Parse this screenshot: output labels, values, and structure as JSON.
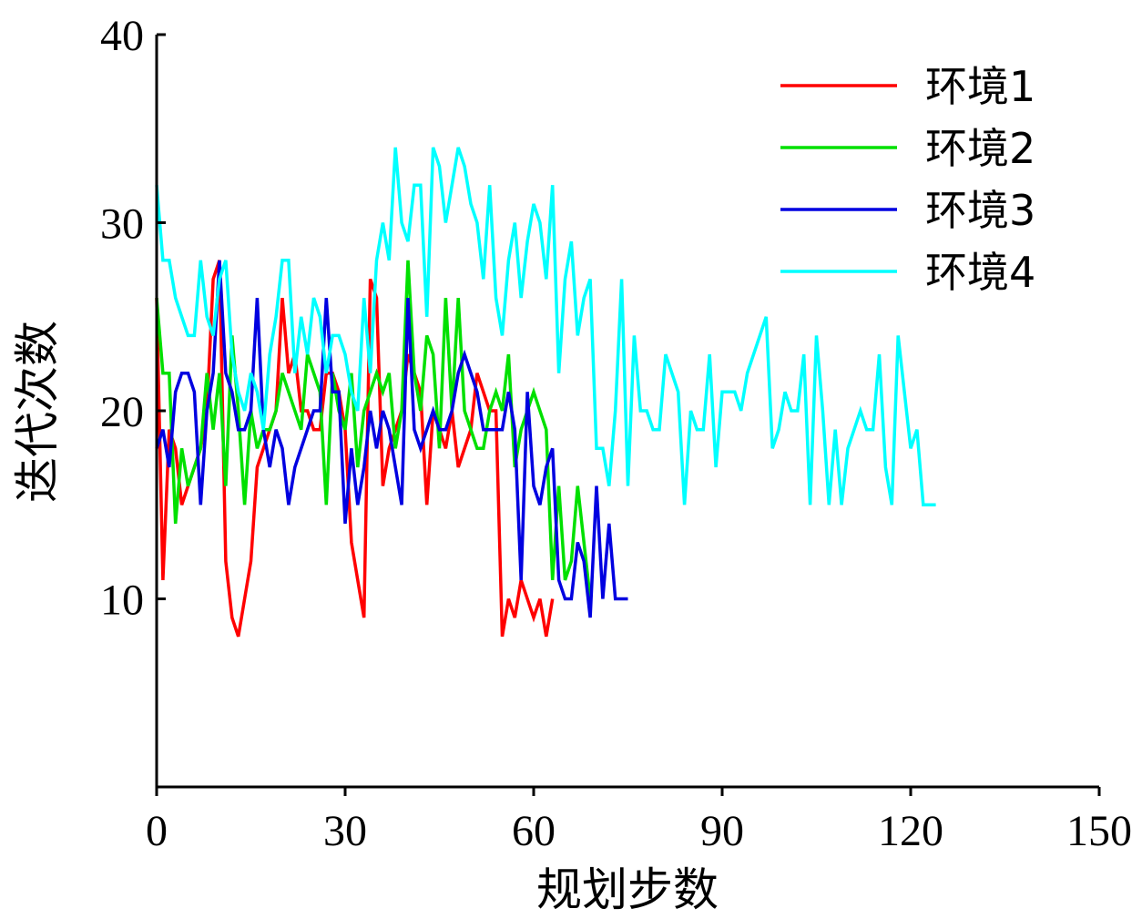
{
  "chart_data": {
    "type": "line",
    "xlabel": "规划步数",
    "ylabel": "迭代次数",
    "xlim": [
      0,
      150
    ],
    "ylim": [
      0,
      40
    ],
    "xticks": [
      "0",
      "30",
      "60",
      "90",
      "120",
      "150"
    ],
    "yticks": [
      "10",
      "20",
      "30",
      "40"
    ],
    "legend_position": "top-right",
    "grid": false,
    "series": [
      {
        "name": "环境1",
        "color": "#ff0000",
        "x": [
          0,
          1,
          2,
          3,
          4,
          5,
          6,
          7,
          8,
          9,
          10,
          11,
          12,
          13,
          14,
          15,
          16,
          17,
          18,
          19,
          20,
          21,
          22,
          23,
          24,
          25,
          26,
          27,
          28,
          29,
          30,
          31,
          32,
          33,
          34,
          35,
          36,
          37,
          38,
          39,
          40,
          41,
          42,
          43,
          44,
          45,
          46,
          47,
          48,
          49,
          50,
          51,
          52,
          53,
          54,
          55,
          56,
          57,
          58,
          59,
          60,
          61,
          62,
          63
        ],
        "values": [
          26,
          11,
          19,
          18,
          15,
          16,
          17,
          18,
          20,
          27,
          28,
          12,
          9,
          8,
          10,
          12,
          17,
          18,
          19,
          20,
          26,
          22,
          23,
          20,
          20,
          19,
          19,
          22,
          22,
          21,
          19,
          13,
          11,
          9,
          27,
          26,
          16,
          18,
          19,
          20,
          23,
          22,
          21,
          15,
          20,
          19,
          18,
          20,
          17,
          18,
          19,
          22,
          21,
          20,
          20,
          8,
          10,
          9,
          11,
          10,
          9,
          10,
          8,
          10
        ]
      },
      {
        "name": "环境2",
        "color": "#00e000",
        "x": [
          0,
          1,
          2,
          3,
          4,
          5,
          6,
          7,
          8,
          9,
          10,
          11,
          12,
          13,
          14,
          15,
          16,
          17,
          18,
          19,
          20,
          21,
          22,
          23,
          24,
          25,
          26,
          27,
          28,
          29,
          30,
          31,
          32,
          33,
          34,
          35,
          36,
          37,
          38,
          39,
          40,
          41,
          42,
          43,
          44,
          45,
          46,
          47,
          48,
          49,
          50,
          51,
          52,
          53,
          54,
          55,
          56,
          57,
          58,
          59,
          60,
          61,
          62,
          63,
          64,
          65,
          66,
          67,
          68,
          69
        ],
        "values": [
          26,
          22,
          22,
          14,
          18,
          16,
          17,
          18,
          22,
          19,
          22,
          16,
          24,
          20,
          15,
          20,
          18,
          19,
          19,
          20,
          22,
          21,
          20,
          19,
          23,
          22,
          21,
          15,
          22,
          20,
          19,
          22,
          17,
          20,
          21,
          22,
          21,
          22,
          18,
          20,
          28,
          22,
          20,
          24,
          23,
          18,
          26,
          20,
          26,
          20,
          19,
          18,
          18,
          20,
          21,
          20,
          23,
          17,
          19,
          20,
          21,
          20,
          19,
          11,
          16,
          11,
          12,
          16,
          13,
          10
        ]
      },
      {
        "name": "环境3",
        "color": "#0000e0",
        "x": [
          0,
          1,
          2,
          3,
          4,
          5,
          6,
          7,
          8,
          9,
          10,
          11,
          12,
          13,
          14,
          15,
          16,
          17,
          18,
          19,
          20,
          21,
          22,
          23,
          24,
          25,
          26,
          27,
          28,
          29,
          30,
          31,
          32,
          33,
          34,
          35,
          36,
          37,
          38,
          39,
          40,
          41,
          42,
          43,
          44,
          45,
          46,
          47,
          48,
          49,
          50,
          51,
          52,
          53,
          54,
          55,
          56,
          57,
          58,
          59,
          60,
          61,
          62,
          63,
          64,
          65,
          66,
          67,
          68,
          69,
          70,
          71,
          72,
          73,
          74,
          75
        ],
        "values": [
          18,
          19,
          17,
          21,
          22,
          22,
          21,
          15,
          20,
          22,
          28,
          22,
          21,
          19,
          19,
          20,
          26,
          19,
          17,
          19,
          18,
          15,
          17,
          18,
          19,
          20,
          20,
          26,
          21,
          21,
          14,
          18,
          15,
          17,
          20,
          18,
          20,
          19,
          17,
          15,
          26,
          19,
          18,
          19,
          20,
          19,
          19,
          20,
          22,
          23,
          22,
          21,
          19,
          19,
          19,
          19,
          21,
          19,
          11,
          21,
          16,
          15,
          17,
          18,
          11,
          10,
          10,
          13,
          12,
          9,
          16,
          10,
          14,
          10,
          10,
          10
        ]
      },
      {
        "name": "环境4",
        "color": "#00ffff",
        "x": [
          0,
          1,
          2,
          3,
          4,
          5,
          6,
          7,
          8,
          9,
          10,
          11,
          12,
          13,
          14,
          15,
          16,
          17,
          18,
          19,
          20,
          21,
          22,
          23,
          24,
          25,
          26,
          27,
          28,
          29,
          30,
          31,
          32,
          33,
          34,
          35,
          36,
          37,
          38,
          39,
          40,
          41,
          42,
          43,
          44,
          45,
          46,
          47,
          48,
          49,
          50,
          51,
          52,
          53,
          54,
          55,
          56,
          57,
          58,
          59,
          60,
          61,
          62,
          63,
          64,
          65,
          66,
          67,
          68,
          69,
          70,
          71,
          72,
          73,
          74,
          75,
          76,
          77,
          78,
          79,
          80,
          81,
          82,
          83,
          84,
          85,
          86,
          87,
          88,
          89,
          90,
          91,
          92,
          93,
          94,
          95,
          96,
          97,
          98,
          99,
          100,
          101,
          102,
          103,
          104,
          105,
          106,
          107,
          108,
          109,
          110,
          111,
          112,
          113,
          114,
          115,
          116,
          117,
          118,
          119,
          120,
          121,
          122,
          123,
          124
        ],
        "values": [
          32,
          28,
          28,
          26,
          25,
          24,
          24,
          28,
          25,
          24,
          27,
          28,
          23,
          21,
          20,
          22,
          21,
          19,
          23,
          25,
          28,
          28,
          22,
          25,
          23,
          26,
          25,
          22,
          24,
          24,
          23,
          21,
          20,
          26,
          22,
          28,
          30,
          28,
          34,
          30,
          29,
          32,
          32,
          25,
          34,
          33,
          30,
          32,
          34,
          33,
          31,
          30,
          27,
          32,
          26,
          24,
          28,
          30,
          26,
          29,
          31,
          30,
          27,
          32,
          22,
          27,
          29,
          24,
          26,
          27,
          18,
          18,
          16,
          20,
          27,
          16,
          24,
          20,
          20,
          19,
          19,
          23,
          22,
          21,
          15,
          20,
          19,
          19,
          23,
          17,
          21,
          21,
          21,
          20,
          22,
          23,
          24,
          25,
          18,
          19,
          21,
          20,
          20,
          23,
          15,
          24,
          20,
          15,
          19,
          15,
          18,
          19,
          20,
          19,
          19,
          23,
          17,
          15,
          24,
          21,
          18,
          19,
          15,
          15,
          15
        ]
      }
    ]
  }
}
